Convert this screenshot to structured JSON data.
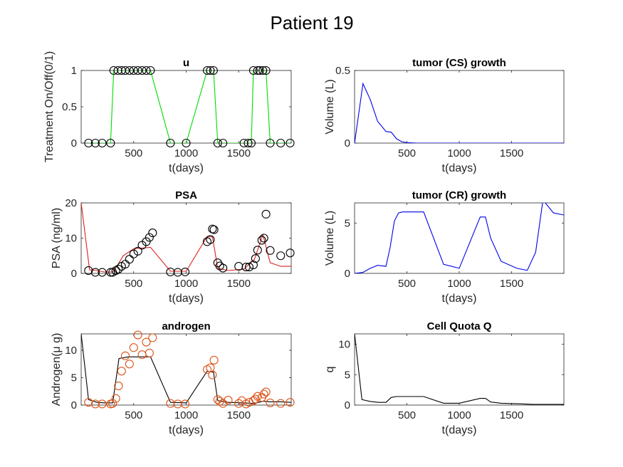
{
  "figure_title": "Patient 19",
  "colors": {
    "green_line": "#00dd00",
    "green_marker": "#00aa00",
    "red_line": "#dd2020",
    "blue_line": "#0000ee",
    "orange_marker": "#d95319",
    "black": "#000000",
    "axis": "#262626"
  },
  "chart_data": [
    {
      "id": "u",
      "type": "line",
      "title": "u",
      "xlabel": "t(days)",
      "ylabel": "Treatment On/Off(0/1)",
      "xlim": [
        0,
        2000
      ],
      "ylim": [
        0,
        1
      ],
      "xticks": [
        500,
        1000,
        1500
      ],
      "yticks": [
        0,
        0.5,
        1
      ],
      "ytick_labels": [
        "0",
        "0.5",
        "1"
      ],
      "series": [
        {
          "style": "line",
          "color": "#00dd00",
          "x": [
            70,
            135,
            200,
            280,
            310,
            350,
            385,
            420,
            460,
            500,
            540,
            580,
            620,
            660,
            850,
            1000,
            1200,
            1230,
            1260,
            1300,
            1350,
            1550,
            1590,
            1620,
            1640,
            1680,
            1700,
            1730,
            1760,
            1800,
            1900,
            1990
          ],
          "y": [
            0,
            0,
            0,
            0,
            1,
            1,
            1,
            1,
            1,
            1,
            1,
            1,
            1,
            1,
            0,
            0,
            1,
            1,
            1,
            0,
            0,
            0,
            0,
            0,
            1,
            1,
            1,
            1,
            1,
            0,
            0,
            0
          ]
        },
        {
          "style": "markers",
          "marker": "circle",
          "color": "#000000",
          "x": [
            70,
            135,
            200,
            280,
            310,
            350,
            385,
            420,
            460,
            500,
            540,
            580,
            620,
            660,
            850,
            1000,
            1200,
            1230,
            1260,
            1300,
            1350,
            1550,
            1590,
            1620,
            1640,
            1680,
            1700,
            1730,
            1760,
            1800,
            1900,
            1990
          ],
          "y": [
            0,
            0,
            0,
            0,
            1,
            1,
            1,
            1,
            1,
            1,
            1,
            1,
            1,
            1,
            0,
            0,
            1,
            1,
            1,
            0,
            0,
            0,
            0,
            0,
            1,
            1,
            1,
            1,
            1,
            0,
            0,
            0
          ]
        }
      ]
    },
    {
      "id": "cs",
      "type": "line",
      "title": "tumor (CS) growth",
      "xlabel": "t(days)",
      "ylabel": "Volume (L)",
      "xlim": [
        0,
        2000
      ],
      "ylim": [
        0,
        0.5
      ],
      "xticks": [
        500,
        1000,
        1500
      ],
      "yticks": [
        0,
        0.5
      ],
      "ytick_labels": [
        "0",
        "0.5"
      ],
      "series": [
        {
          "style": "line",
          "color": "#0000ee",
          "x": [
            0,
            80,
            150,
            220,
            300,
            350,
            400,
            450,
            500,
            600,
            2000
          ],
          "y": [
            0,
            0.41,
            0.3,
            0.15,
            0.08,
            0.075,
            0.03,
            0.01,
            0.003,
            0,
            0
          ]
        }
      ]
    },
    {
      "id": "psa",
      "type": "line",
      "title": "PSA",
      "xlabel": "t(days)",
      "ylabel": "PSA (ng/ml)",
      "xlim": [
        0,
        2000
      ],
      "ylim": [
        0,
        20
      ],
      "xticks": [
        500,
        1000,
        1500
      ],
      "yticks": [
        0,
        10,
        20
      ],
      "ytick_labels": [
        "0",
        "10",
        "20"
      ],
      "series": [
        {
          "style": "line",
          "color": "#dd2020",
          "x": [
            0,
            80,
            150,
            220,
            300,
            330,
            400,
            500,
            660,
            850,
            1000,
            1200,
            1250,
            1300,
            1400,
            1550,
            1650,
            1730,
            1800,
            1900,
            2000
          ],
          "y": [
            20,
            1,
            0.8,
            0.4,
            0.4,
            1.5,
            5,
            7,
            7.4,
            0.6,
            0.6,
            10.5,
            10.3,
            1.5,
            0.8,
            1.2,
            4,
            11,
            3,
            2,
            2
          ]
        },
        {
          "style": "markers",
          "marker": "circle",
          "color": "#000000",
          "x": [
            70,
            135,
            200,
            280,
            300,
            330,
            355,
            385,
            420,
            460,
            500,
            540,
            580,
            620,
            650,
            680,
            850,
            920,
            990,
            1200,
            1230,
            1250,
            1265,
            1300,
            1320,
            1350,
            1500,
            1570,
            1600,
            1640,
            1660,
            1680,
            1720,
            1740,
            1760,
            1800,
            1900,
            1990
          ],
          "y": [
            0.8,
            0.3,
            0.3,
            0.3,
            0.3,
            0.8,
            1.2,
            2.0,
            2.6,
            4.0,
            5.5,
            6.3,
            8.0,
            9.0,
            10.2,
            11.5,
            0.4,
            0.3,
            0.4,
            9.0,
            9.6,
            12.6,
            12.4,
            3.0,
            2.1,
            1.5,
            2.0,
            1.8,
            1.8,
            2.4,
            4.2,
            6.6,
            9.4,
            10.0,
            16.8,
            6.5,
            5.0,
            5.8
          ]
        }
      ]
    },
    {
      "id": "cr",
      "type": "line",
      "title": "tumor (CR) growth",
      "xlabel": "t(days)",
      "ylabel": "Volume (L)",
      "xlim": [
        0,
        2000
      ],
      "ylim": [
        0,
        7
      ],
      "xticks": [
        500,
        1000,
        1500
      ],
      "yticks": [
        0,
        5
      ],
      "ytick_labels": [
        "0",
        "5"
      ],
      "series": [
        {
          "style": "line",
          "color": "#0000ee",
          "x": [
            0,
            80,
            150,
            220,
            300,
            340,
            380,
            420,
            460,
            550,
            660,
            850,
            1000,
            1200,
            1250,
            1300,
            1400,
            1550,
            1650,
            1730,
            1800,
            1900,
            2000
          ],
          "y": [
            0,
            0.1,
            0.5,
            0.8,
            0.7,
            2.6,
            5.2,
            6.0,
            6.1,
            6.1,
            6.1,
            0.9,
            0.5,
            5.6,
            5.6,
            3.5,
            1.2,
            0.5,
            0.3,
            2.1,
            7.3,
            6.0,
            5.8
          ]
        }
      ]
    },
    {
      "id": "androgen",
      "type": "line",
      "title": "androgen",
      "xlabel": "t(days)",
      "ylabel": "Androgen(μ g)",
      "xlim": [
        0,
        2000
      ],
      "ylim": [
        0,
        13
      ],
      "xticks": [
        500,
        1000,
        1500
      ],
      "yticks": [
        0,
        5,
        10
      ],
      "ytick_labels": [
        "0",
        "5",
        "10"
      ],
      "series": [
        {
          "style": "line",
          "color": "#000000",
          "x": [
            0,
            70,
            150,
            230,
            300,
            360,
            450,
            660,
            850,
            1000,
            1200,
            1260,
            1300,
            1400,
            1550,
            1650,
            1730,
            1800,
            1900,
            2000
          ],
          "y": [
            13,
            1,
            0.5,
            0.4,
            0.4,
            8.5,
            8.8,
            8.8,
            0.5,
            0.4,
            6.2,
            6.0,
            0.8,
            0.5,
            0.4,
            0.3,
            0.7,
            0.6,
            0.6,
            0.5
          ]
        },
        {
          "style": "markers",
          "marker": "circle",
          "color": "#d95319",
          "x": [
            70,
            135,
            200,
            280,
            300,
            330,
            355,
            385,
            420,
            460,
            500,
            540,
            580,
            620,
            650,
            680,
            850,
            920,
            990,
            1200,
            1230,
            1250,
            1265,
            1300,
            1320,
            1350,
            1400,
            1500,
            1530,
            1570,
            1600,
            1640,
            1660,
            1680,
            1720,
            1740,
            1760,
            1800,
            1900,
            1990
          ],
          "y": [
            0.5,
            0.2,
            0.2,
            0.2,
            0.3,
            1.2,
            3.5,
            6.2,
            9.0,
            7.5,
            10.5,
            12.8,
            9.2,
            11.5,
            9.5,
            12.3,
            0.3,
            0.2,
            0.2,
            6.5,
            6.8,
            5.5,
            8.2,
            1.0,
            0.7,
            0.3,
            0.9,
            0.3,
            0.8,
            0.2,
            0.5,
            0.8,
            1.1,
            1.6,
            1.4,
            2.0,
            2.4,
            0.4,
            0.3,
            0.5
          ]
        }
      ]
    },
    {
      "id": "q",
      "type": "line",
      "title": "Cell Quota Q",
      "xlabel": "t(days)",
      "ylabel": "q",
      "xlim": [
        0,
        2000
      ],
      "ylim": [
        0,
        11.7
      ],
      "xticks": [
        500,
        1000,
        1500
      ],
      "yticks": [
        0,
        5,
        10
      ],
      "ytick_labels": [
        "0",
        "5",
        "10"
      ],
      "series": [
        {
          "style": "line",
          "color": "#000000",
          "x": [
            0,
            70,
            150,
            230,
            300,
            350,
            400,
            660,
            850,
            1000,
            1200,
            1250,
            1300,
            1400,
            1600,
            1700,
            1800,
            2000
          ],
          "y": [
            11.7,
            0.9,
            0.6,
            0.45,
            0.45,
            1.25,
            1.4,
            1.4,
            0.3,
            0.3,
            1.1,
            1.1,
            0.5,
            0.3,
            0.2,
            0.1,
            0.1,
            0.1
          ]
        }
      ]
    }
  ]
}
